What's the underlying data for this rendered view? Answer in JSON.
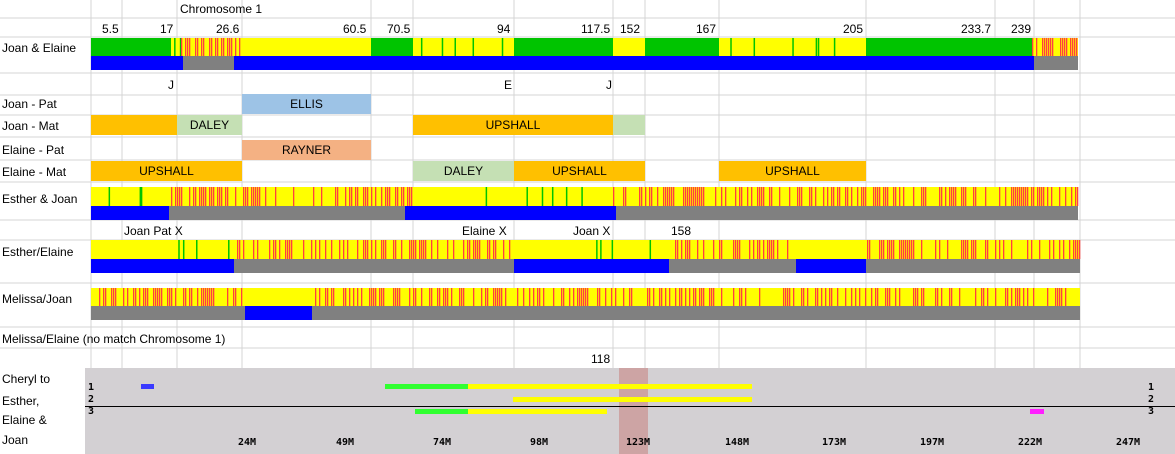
{
  "title": "Chromosome 1",
  "scale_labels": [
    "5.5",
    "17",
    "26.6",
    "60.5",
    "70.5",
    "94",
    "117.5",
    "152",
    "167",
    "205",
    "233.7",
    "239"
  ],
  "rows": {
    "joan_elaine": "Joan & Elaine",
    "joan_pat": "Joan - Pat",
    "joan_mat": "Joan - Mat",
    "elaine_pat": "Elaine - Pat",
    "elaine_mat": "Elaine - Mat",
    "esther_joan": "Esther & Joan",
    "esther_elaine": "Esther/Elaine",
    "melissa_joan": "Melissa/Joan",
    "melissa_elaine": "Melissa/Elaine (no match Chromosome 1)"
  },
  "markers": {
    "j1": "J",
    "e": "E",
    "j2": "J"
  },
  "segments": {
    "ellis": "ELLIS",
    "daley1": "DALEY",
    "upshall1": "UPSHALL",
    "rayner": "RAYNER",
    "upshall2": "UPSHALL",
    "daley2": "DALEY",
    "upshall3": "UPSHALL",
    "upshall4": "UPSHALL"
  },
  "notes": {
    "joan_pat_x": "Joan Pat X",
    "elaine_x": "Elaine X",
    "joan_x": "Joan X",
    "n158": "158",
    "n118": "118"
  },
  "browser": {
    "label_lines": [
      "Cheryl to",
      "Esther,",
      "Elaine &",
      "Joan"
    ],
    "track_numbers": [
      "1",
      "2",
      "3"
    ],
    "axis_ticks": [
      "24M",
      "49M",
      "74M",
      "98M",
      "123M",
      "148M",
      "173M",
      "197M",
      "222M",
      "247M"
    ]
  },
  "colors": {
    "green": "#00c400",
    "yellow": "#ffff00",
    "red": "#ff4040",
    "blue": "#0000ff",
    "gray": "#808080",
    "ellis": "#9dc3e6",
    "daley": "#c5e0b4",
    "upshall": "#ffc000",
    "rayner": "#f4b183"
  }
}
